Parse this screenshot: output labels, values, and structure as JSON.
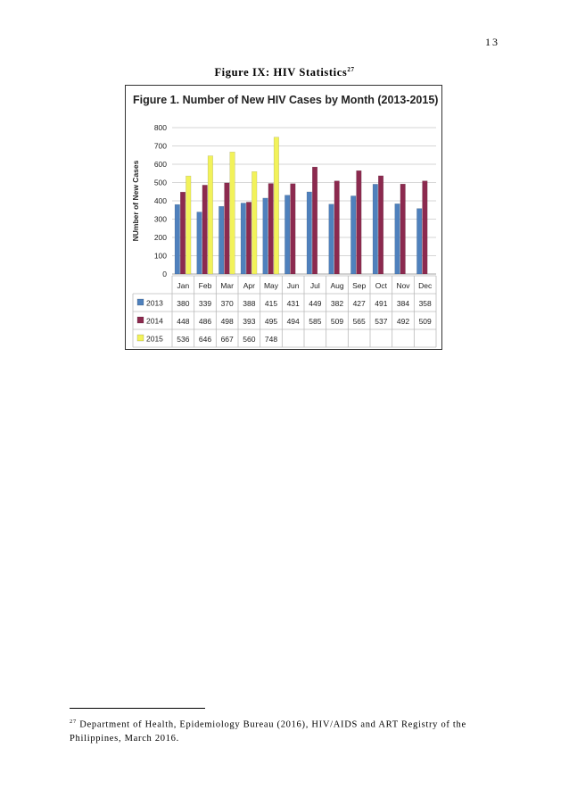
{
  "page_number": "13",
  "figure": {
    "caption": "Figure IX: HIV Statistics",
    "footnote_ref": "27"
  },
  "footnote": {
    "marker": "27",
    "text": "Department of Health, Epidemiology Bureau (2016), HIV/AIDS and ART Registry of the Philippines, March 2016."
  },
  "chart_data": {
    "type": "bar",
    "title": "Figure 1. Number of New HIV Cases by Month  (2013-2015)",
    "ylabel": "NUmber of New Cases",
    "xlabel": "",
    "ylim": [
      0,
      800
    ],
    "yticks": [
      0,
      100,
      200,
      300,
      400,
      500,
      600,
      700,
      800
    ],
    "grid": true,
    "legend": "data-table",
    "categories": [
      "Jan",
      "Feb",
      "Mar",
      "Apr",
      "May",
      "Jun",
      "Jul",
      "Aug",
      "Sep",
      "Oct",
      "Nov",
      "Dec"
    ],
    "series": [
      {
        "name": "2013",
        "color": "#4f81bd",
        "values": [
          380,
          339,
          370,
          388,
          415,
          431,
          449,
          382,
          427,
          491,
          384,
          358
        ]
      },
      {
        "name": "2014",
        "color": "#8c2a4f",
        "values": [
          448,
          486,
          498,
          393,
          495,
          494,
          585,
          509,
          565,
          537,
          492,
          509
        ]
      },
      {
        "name": "2015",
        "color": "#f2f25a",
        "values": [
          536,
          646,
          667,
          560,
          748,
          null,
          null,
          null,
          null,
          null,
          null,
          null
        ]
      }
    ]
  }
}
